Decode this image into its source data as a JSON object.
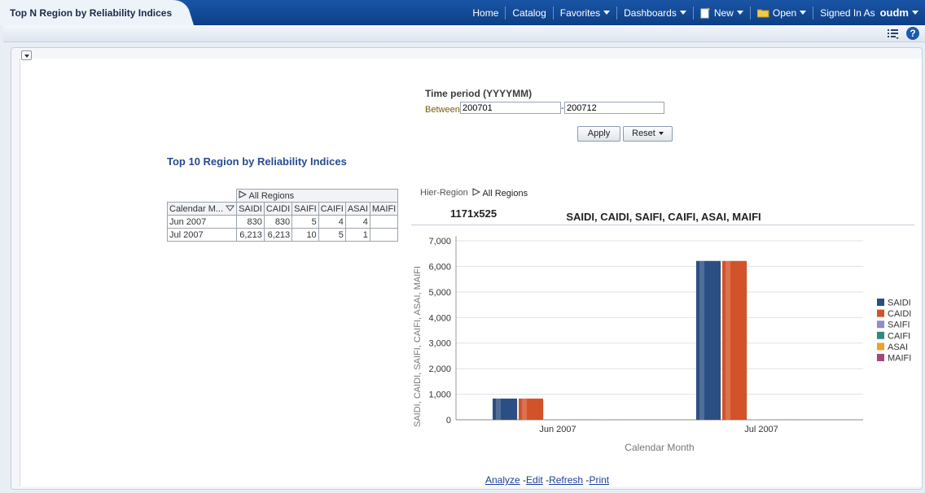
{
  "header": {
    "page_title": "Top N Region by Reliability Indices",
    "nav": {
      "home": "Home",
      "catalog": "Catalog",
      "favorites": "Favorites",
      "dashboards": "Dashboards",
      "new": "New",
      "open": "Open",
      "signed_in_as": "Signed In As",
      "username": "oudm"
    }
  },
  "prompt": {
    "label": "Time period (YYYYMM)",
    "between": "Between",
    "from_value": "200701",
    "dash": "-",
    "to_value": "200712",
    "apply": "Apply",
    "reset": "Reset"
  },
  "report": {
    "title": "Top 10 Region by Reliability Indices"
  },
  "pivot": {
    "group_header": "All Regions",
    "row_header": "Calendar M...",
    "columns": [
      "SAIDI",
      "CAIDI",
      "SAIFI",
      "CAIFI",
      "ASAI",
      "MAIFI"
    ],
    "rows": [
      {
        "label": "Jun 2007",
        "values": [
          "830",
          "830",
          "5",
          "4",
          "4",
          ""
        ]
      },
      {
        "label": "Jul 2007",
        "values": [
          "6,213",
          "6,213",
          "10",
          "5",
          "1",
          ""
        ]
      }
    ]
  },
  "chart_header": {
    "hier_label": "Hier-Region",
    "hier_value": "All Regions",
    "size_label": "1171x525"
  },
  "chart_data": {
    "type": "bar",
    "title": "SAIDI, CAIDI, SAIFI, CAIFI, ASAI, MAIFI",
    "xlabel": "Calendar Month",
    "ylabel": "SAIDI, CAIDI, SAIFI, CAIFI, ASAI, MAIFI",
    "categories": [
      "Jun 2007",
      "Jul 2007"
    ],
    "ylim": [
      0,
      7000
    ],
    "yticks": [
      "0",
      "1,000",
      "2,000",
      "3,000",
      "4,000",
      "5,000",
      "6,000",
      "7,000"
    ],
    "grid": true,
    "legend_position": "right",
    "series": [
      {
        "name": "SAIDI",
        "values": [
          830,
          6213
        ],
        "color": "#2b4f82"
      },
      {
        "name": "CAIDI",
        "values": [
          830,
          6213
        ],
        "color": "#d2532a"
      },
      {
        "name": "SAIFI",
        "values": [
          5,
          10
        ],
        "color": "#8b8fc4"
      },
      {
        "name": "CAIFI",
        "values": [
          4,
          5
        ],
        "color": "#2f8a7e"
      },
      {
        "name": "ASAI",
        "values": [
          4,
          1
        ],
        "color": "#f0a030"
      },
      {
        "name": "MAIFI",
        "values": [
          null,
          null
        ],
        "color": "#a04a7a"
      }
    ]
  },
  "links": {
    "analyze": "Analyze",
    "edit": "Edit",
    "refresh": "Refresh",
    "print": "Print"
  }
}
